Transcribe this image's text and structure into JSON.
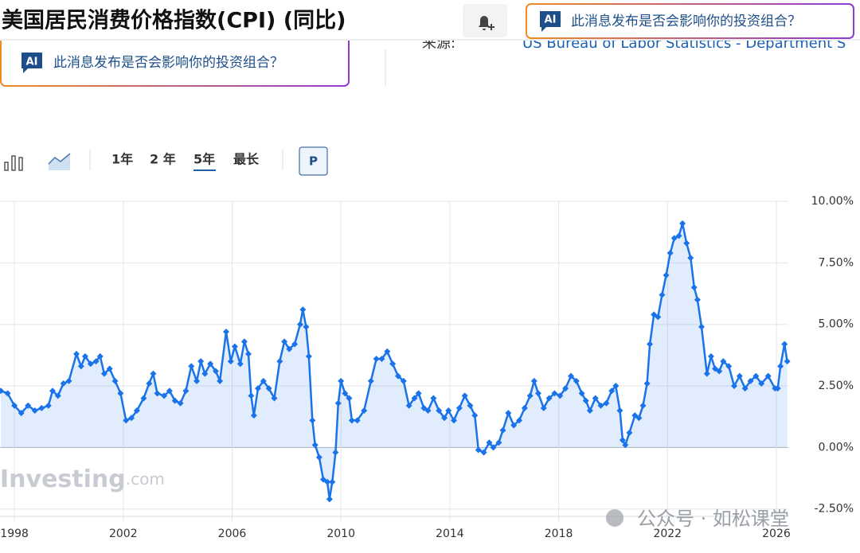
{
  "header": {
    "title": "美国居民消费价格指数(CPI) (同比)",
    "ai_badge": "AI",
    "ai_prompt": "此消息发布是否会影响你的投资组合？"
  },
  "banner": {
    "ai_badge": "AI",
    "ai_prompt": "此消息发布是否会影响你的投资组合？"
  },
  "source": {
    "label": "来源:",
    "value": "US Bureau of Labor Statistics - Department S"
  },
  "toolbar": {
    "ranges": [
      "1年",
      "2 年",
      "5年",
      "最长"
    ],
    "active_range_index": 2,
    "button": "P"
  },
  "watermark": {
    "brand": "Investing",
    "suffix": ".com",
    "credit": "公众号 · 如松课堂"
  },
  "chart_data": {
    "type": "line",
    "area": true,
    "grid": true,
    "x": [
      1997.5,
      1997.75,
      1998.0,
      1998.25,
      1998.5,
      1998.75,
      1999.0,
      1999.25,
      1999.4,
      1999.6,
      1999.8,
      2000.0,
      2000.28,
      2000.45,
      2000.6,
      2000.8,
      2001.0,
      2001.15,
      2001.3,
      2001.5,
      2001.7,
      2001.9,
      2002.1,
      2002.3,
      2002.5,
      2002.75,
      2002.95,
      2003.1,
      2003.25,
      2003.5,
      2003.7,
      2003.9,
      2004.1,
      2004.3,
      2004.5,
      2004.7,
      2004.85,
      2005.0,
      2005.2,
      2005.4,
      2005.55,
      2005.78,
      2005.95,
      2006.1,
      2006.3,
      2006.45,
      2006.6,
      2006.7,
      2006.8,
      2006.95,
      2007.15,
      2007.35,
      2007.55,
      2007.75,
      2007.92,
      2008.1,
      2008.3,
      2008.5,
      2008.6,
      2008.72,
      2008.82,
      2008.95,
      2009.05,
      2009.2,
      2009.35,
      2009.5,
      2009.58,
      2009.68,
      2009.8,
      2009.9,
      2010.0,
      2010.15,
      2010.3,
      2010.4,
      2010.6,
      2010.85,
      2011.1,
      2011.3,
      2011.5,
      2011.7,
      2011.9,
      2012.1,
      2012.3,
      2012.5,
      2012.7,
      2012.85,
      2013.05,
      2013.2,
      2013.4,
      2013.6,
      2013.8,
      2013.95,
      2014.15,
      2014.35,
      2014.55,
      2014.75,
      2014.92,
      2015.05,
      2015.25,
      2015.45,
      2015.6,
      2015.8,
      2015.95,
      2016.15,
      2016.35,
      2016.55,
      2016.75,
      2016.95,
      2017.1,
      2017.25,
      2017.45,
      2017.65,
      2017.85,
      2018.05,
      2018.25,
      2018.45,
      2018.65,
      2018.85,
      2019.0,
      2019.15,
      2019.35,
      2019.55,
      2019.75,
      2019.95,
      2020.1,
      2020.25,
      2020.35,
      2020.45,
      2020.6,
      2020.8,
      2020.95,
      2021.1,
      2021.25,
      2021.35,
      2021.5,
      2021.65,
      2021.8,
      2021.95,
      2022.1,
      2022.25,
      2022.42,
      2022.55,
      2022.7,
      2022.85,
      2022.98,
      2023.1,
      2023.25,
      2023.45,
      2023.6,
      2023.75,
      2023.9,
      2024.05,
      2024.25,
      2024.45,
      2024.65,
      2024.85,
      2025.05,
      2025.25,
      2025.45,
      2025.7,
      2025.95,
      2026.05,
      2026.15,
      2026.3,
      2026.4
    ],
    "series": [
      {
        "name": "CPI (同比)",
        "color": "#1a73e8",
        "values": [
          2.3,
          2.2,
          1.7,
          1.4,
          1.7,
          1.5,
          1.6,
          1.7,
          2.3,
          2.1,
          2.6,
          2.7,
          3.8,
          3.3,
          3.7,
          3.4,
          3.5,
          3.7,
          3.0,
          3.2,
          2.7,
          2.2,
          1.1,
          1.2,
          1.5,
          2.0,
          2.6,
          3.0,
          2.2,
          2.1,
          2.3,
          1.9,
          1.8,
          2.3,
          3.3,
          2.7,
          3.5,
          3.0,
          3.4,
          3.1,
          2.7,
          4.7,
          3.5,
          4.1,
          3.4,
          4.3,
          3.8,
          2.1,
          1.3,
          2.4,
          2.7,
          2.4,
          2.0,
          3.5,
          4.3,
          4.0,
          4.2,
          5.0,
          5.6,
          4.9,
          3.7,
          1.1,
          0.1,
          -0.4,
          -1.3,
          -1.4,
          -2.1,
          -1.4,
          -0.2,
          1.8,
          2.7,
          2.2,
          2.0,
          1.1,
          1.1,
          1.5,
          2.7,
          3.6,
          3.6,
          3.9,
          3.4,
          2.9,
          2.7,
          1.7,
          2.0,
          2.2,
          1.6,
          1.5,
          2.0,
          1.5,
          1.2,
          1.5,
          1.1,
          1.6,
          2.1,
          1.7,
          1.3,
          -0.1,
          -0.2,
          0.2,
          0.0,
          0.2,
          0.7,
          1.4,
          0.9,
          1.1,
          1.6,
          2.1,
          2.7,
          2.2,
          1.6,
          2.0,
          2.2,
          2.1,
          2.4,
          2.9,
          2.7,
          2.2,
          1.9,
          1.5,
          2.0,
          1.7,
          1.8,
          2.3,
          2.5,
          1.5,
          0.3,
          0.1,
          0.6,
          1.3,
          1.2,
          1.7,
          2.6,
          4.2,
          5.4,
          5.3,
          6.2,
          7.0,
          7.9,
          8.5,
          8.6,
          9.1,
          8.3,
          7.7,
          6.5,
          6.0,
          4.9,
          3.0,
          3.7,
          3.2,
          3.1,
          3.5,
          3.3,
          2.5,
          2.9,
          2.4,
          2.7,
          2.9,
          2.6,
          2.9,
          2.4,
          2.4,
          3.3,
          4.2,
          3.5
        ]
      }
    ],
    "xlim": [
      1997.47,
      2026.44
    ],
    "xticks": [
      1998,
      2002,
      2006,
      2010,
      2014,
      2018,
      2022,
      2026
    ],
    "ylim": [
      -2.8,
      10
    ],
    "yticks": [
      {
        "value": -2.5,
        "label": "-2.50%"
      },
      {
        "value": 0,
        "label": "0.00%"
      },
      {
        "value": 2.5,
        "label": "2.50%"
      },
      {
        "value": 5,
        "label": "5.00%"
      },
      {
        "value": 7.5,
        "label": "7.50%"
      },
      {
        "value": 10,
        "label": "10.00%"
      }
    ]
  }
}
